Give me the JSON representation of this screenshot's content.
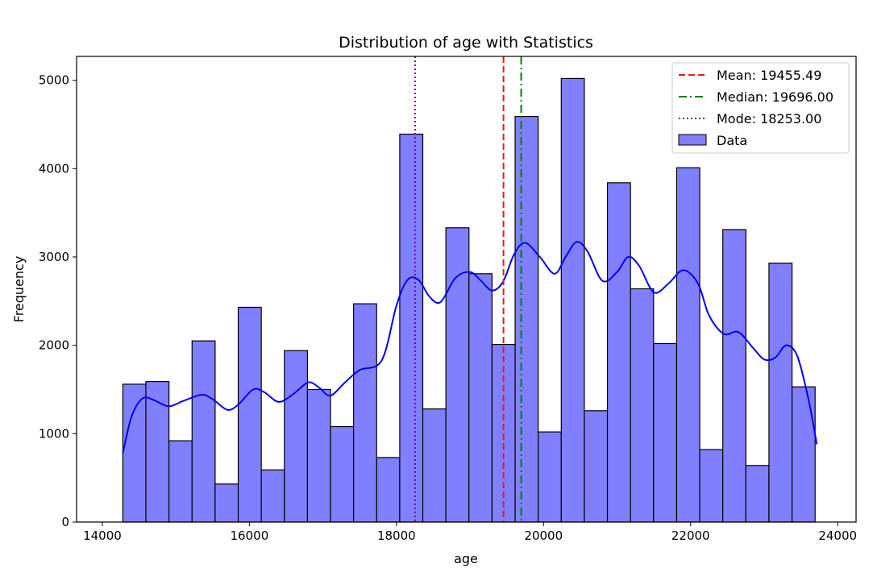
{
  "chart_data": {
    "type": "bar",
    "title": "Distribution of age with Statistics",
    "xlabel": "age",
    "ylabel": "Frequency",
    "xlim": [
      13650,
      24250
    ],
    "ylim": [
      0,
      5270
    ],
    "xticks": [
      14000,
      16000,
      18000,
      20000,
      22000,
      24000
    ],
    "yticks": [
      0,
      1000,
      2000,
      3000,
      4000,
      5000
    ],
    "bins": {
      "start": 14279,
      "width": 313.8,
      "counts": [
        1560,
        1590,
        920,
        2050,
        430,
        2430,
        590,
        1940,
        1500,
        1080,
        2470,
        730,
        4390,
        1280,
        3330,
        2810,
        2010,
        4590,
        1020,
        5020,
        1260,
        3840,
        2640,
        2020,
        4010,
        820,
        3310,
        640,
        2930,
        1530
      ]
    },
    "kde": {
      "x": [
        14279,
        14400,
        14550,
        14700,
        14900,
        15100,
        15350,
        15500,
        15700,
        15850,
        16050,
        16200,
        16400,
        16600,
        16800,
        16950,
        17100,
        17300,
        17500,
        17800,
        18000,
        18150,
        18300,
        18450,
        18600,
        18800,
        19000,
        19150,
        19300,
        19450,
        19600,
        19750,
        19950,
        20150,
        20300,
        20450,
        20600,
        20800,
        21000,
        21150,
        21300,
        21500,
        21700,
        21900,
        22100,
        22250,
        22450,
        22650,
        22850,
        23000,
        23150,
        23300,
        23450,
        23600,
        23716
      ],
      "y": [
        780,
        1200,
        1400,
        1380,
        1310,
        1370,
        1440,
        1390,
        1270,
        1330,
        1500,
        1470,
        1360,
        1450,
        1580,
        1520,
        1430,
        1580,
        1720,
        1830,
        2450,
        2740,
        2740,
        2550,
        2490,
        2760,
        2830,
        2730,
        2620,
        2720,
        3030,
        3160,
        3000,
        2810,
        3000,
        3170,
        3060,
        2730,
        2830,
        3000,
        2900,
        2600,
        2700,
        2850,
        2700,
        2340,
        2130,
        2150,
        1970,
        1840,
        1860,
        2000,
        1880,
        1400,
        880
      ]
    },
    "lines": [
      {
        "name": "Mean: 19455.49",
        "value": 19455.49,
        "color": "#e41a1c"
      },
      {
        "name": "Median: 19696.00",
        "value": 19696.0,
        "color": "#008000"
      },
      {
        "name": "Mode: 18253.00",
        "value": 18253.0,
        "color": "#800080"
      }
    ],
    "series": [
      {
        "name": "Data",
        "color": "#8080ff"
      }
    ],
    "kde_color": "#0000ee",
    "legend": "top-right",
    "grid": false
  }
}
